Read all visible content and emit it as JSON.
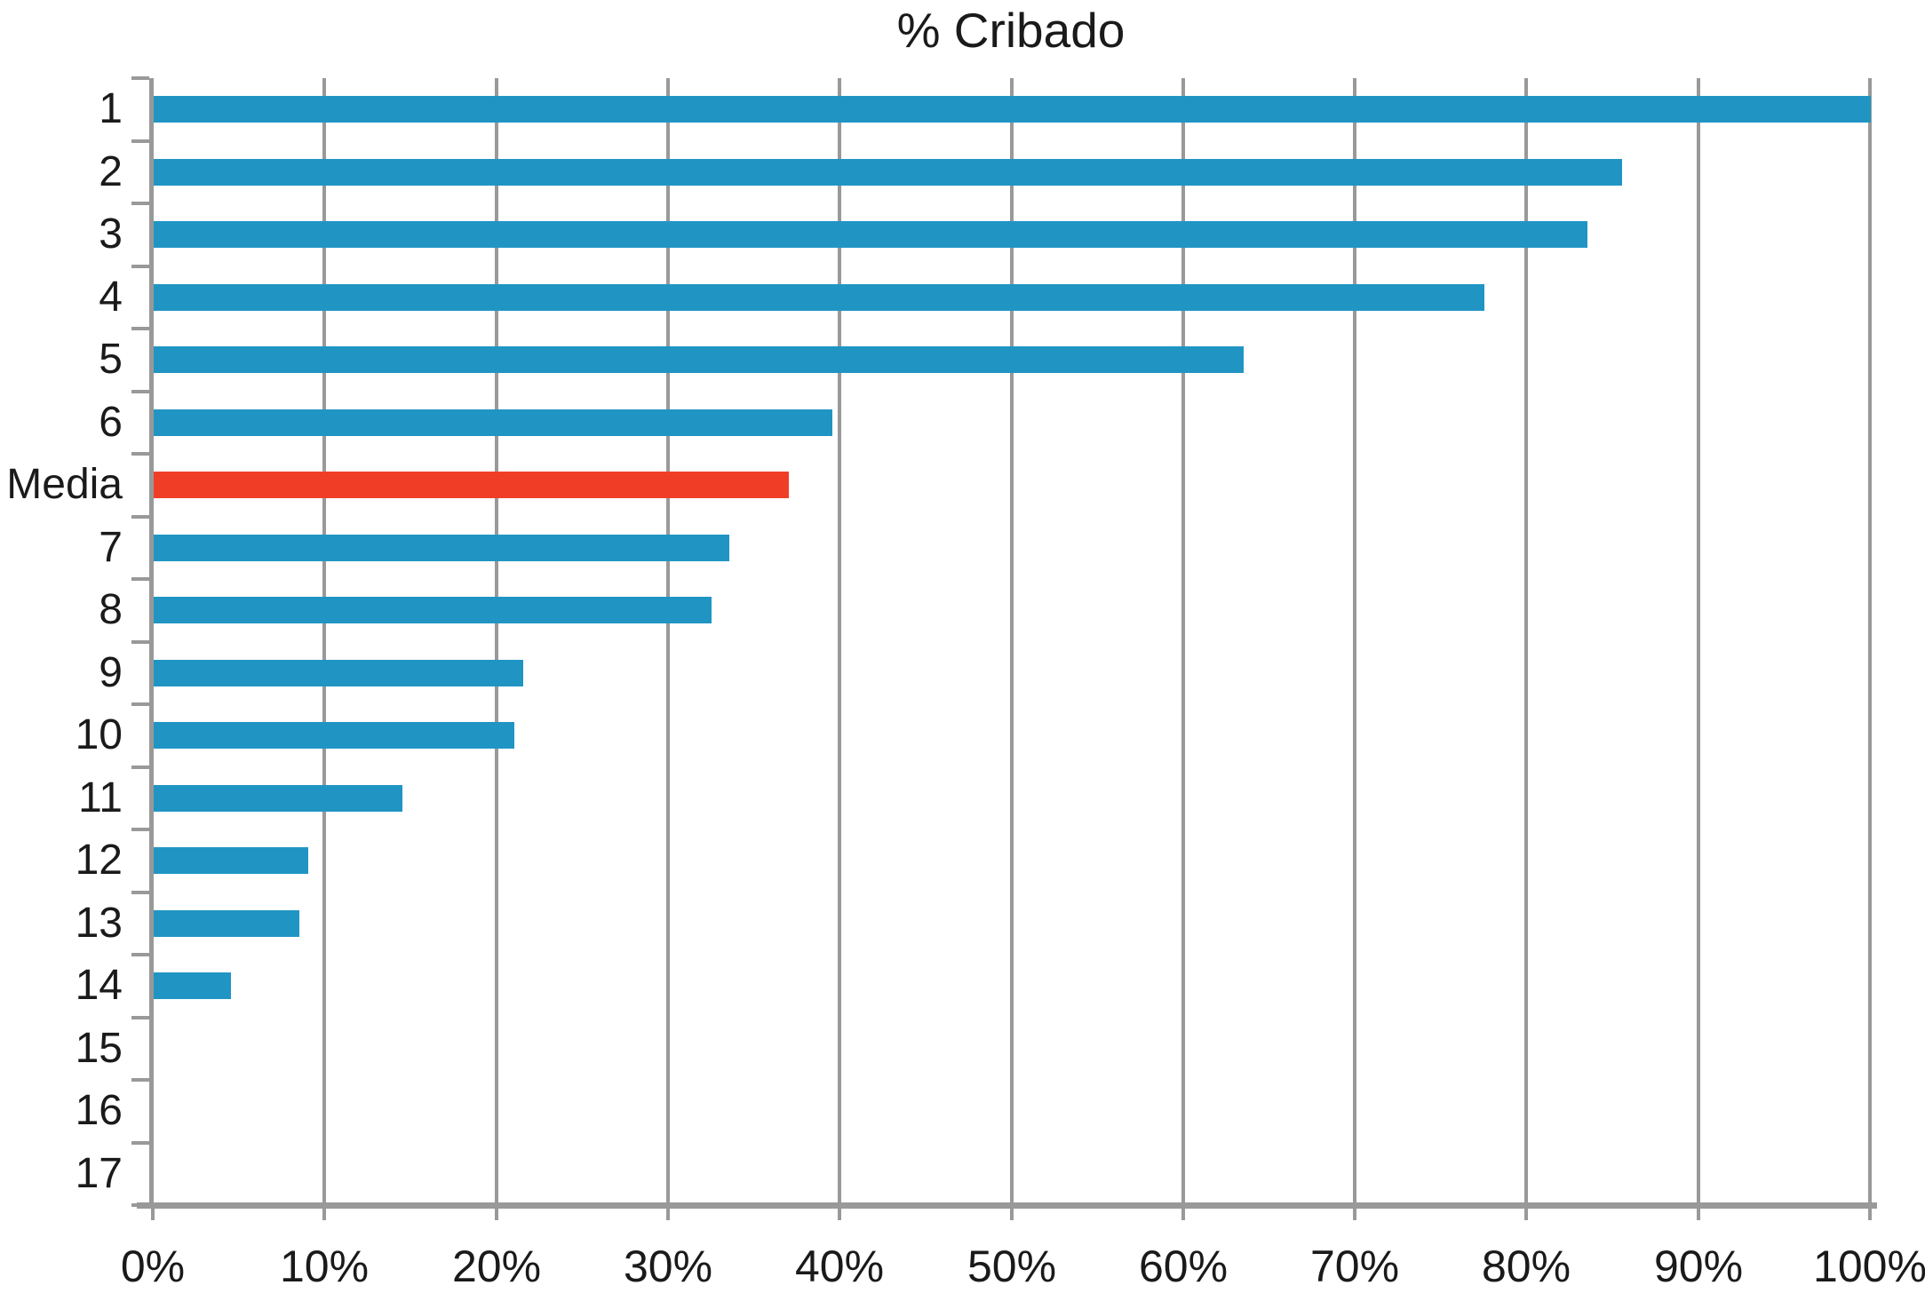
{
  "chart_data": {
    "type": "bar",
    "orientation": "horizontal",
    "title": "% Cribado",
    "categories": [
      "1",
      "2",
      "3",
      "4",
      "5",
      "6",
      "Media",
      "7",
      "8",
      "9",
      "10",
      "11",
      "12",
      "13",
      "14",
      "15",
      "16",
      "17"
    ],
    "values": [
      100,
      85.5,
      83.5,
      77.5,
      63.5,
      39.5,
      37,
      33.5,
      32.5,
      21.5,
      21,
      14.5,
      9,
      8.5,
      4.5,
      0,
      0,
      0
    ],
    "highlight_category": "Media",
    "highlight_index": 6,
    "xlim": [
      0,
      100
    ],
    "x_tick_step": 10,
    "x_tick_labels": [
      "0%",
      "10%",
      "20%",
      "30%",
      "40%",
      "50%",
      "60%",
      "70%",
      "80%",
      "90%",
      "100%"
    ],
    "grid": "vertical-gridlines-on",
    "legend": "none",
    "colors": {
      "bar": "#2095C4",
      "highlight_bar": "#F03E26",
      "grid_line": "#999999",
      "axis_line": "#999999",
      "text": "#1A1A1A",
      "background": "#FFFFFF"
    }
  }
}
